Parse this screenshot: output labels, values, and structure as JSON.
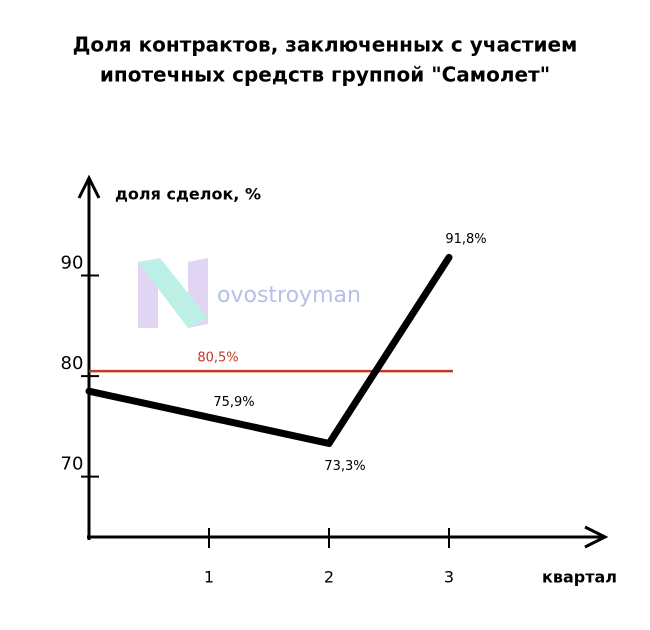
{
  "chart_data": {
    "type": "line",
    "title": [
      "Доля контрактов, заключенных с участием",
      "ипотечных средств группой \"Самолет\""
    ],
    "y_label": "доля сделок, %",
    "x_label": "квартал",
    "x": [
      0,
      1,
      2,
      3
    ],
    "series": [
      {
        "color": "#000000",
        "values": [
          78.5,
          75.9,
          73.3,
          91.8
        ],
        "value_labels": [
          null,
          "75,9%",
          "73,3%",
          "91,8%"
        ]
      }
    ],
    "reference_line": {
      "value": 80.5,
      "label": "80,5%",
      "color": "#c0392b"
    },
    "watermark": "ovostroyman",
    "xlim": [
      0,
      4.3
    ],
    "xticks": [
      1,
      2,
      3
    ],
    "ylim": [
      64,
      99.5
    ],
    "yticks": [
      70,
      80,
      90
    ]
  }
}
